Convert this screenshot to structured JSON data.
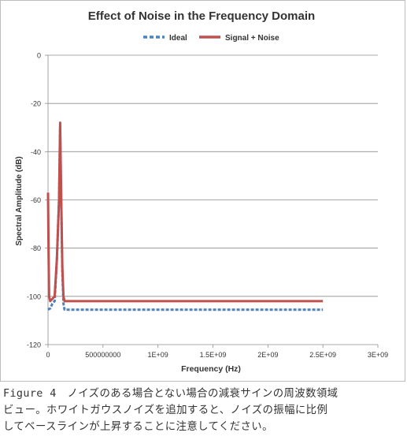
{
  "chart_data": {
    "type": "line",
    "title": "Effect of Noise in the Frequency Domain",
    "xlabel": "Frequency (Hz)",
    "ylabel": "Spectral Amplitude (dB)",
    "xlim": [
      0,
      3000000000
    ],
    "ylim": [
      -120,
      0
    ],
    "x_ticks": [
      0,
      500000000,
      1000000000,
      1500000000,
      2000000000,
      2500000000,
      3000000000
    ],
    "x_tick_labels": [
      "0",
      "500000000",
      "1E+09",
      "1.5E+09",
      "2E+09",
      "2.5E+09",
      "3E+09"
    ],
    "y_ticks": [
      0,
      -20,
      -40,
      -60,
      -80,
      -100,
      -120
    ],
    "y_tick_labels": [
      "0",
      "-20",
      "-40",
      "-60",
      "-80",
      "-100",
      "-120"
    ],
    "grid": "horizontal",
    "legend_position": "top-center",
    "series": [
      {
        "name": "Ideal",
        "color": "#4f81bd",
        "style": "dashed",
        "x": [
          0,
          20000000,
          40000000,
          60000000,
          80000000,
          100000000,
          110000000,
          120000000,
          130000000,
          140000000,
          150000000,
          200000000,
          300000000,
          500000000,
          1000000000,
          1500000000,
          2000000000,
          2500000000
        ],
        "y": [
          -105.5,
          -105,
          -103,
          -102,
          -85,
          -60,
          -30,
          -62,
          -90,
          -103,
          -105.5,
          -105.5,
          -105.5,
          -105.5,
          -105.5,
          -105.5,
          -105.5,
          -105.5
        ]
      },
      {
        "name": "Signal + Noise",
        "color": "#c0504d",
        "style": "solid",
        "x": [
          0,
          5000000,
          10000000,
          20000000,
          40000000,
          60000000,
          80000000,
          100000000,
          110000000,
          120000000,
          130000000,
          140000000,
          150000000,
          200000000,
          300000000,
          500000000,
          1000000000,
          1500000000,
          2000000000,
          2500000000
        ],
        "y": [
          -57,
          -82,
          -100,
          -102,
          -101,
          -100,
          -85,
          -60,
          -28,
          -60,
          -88,
          -100,
          -102,
          -102,
          -102,
          -102,
          -102,
          -102,
          -102,
          -102
        ]
      }
    ]
  },
  "caption_lines": [
    "Figure 4　ノイズのある場合とない場合の減衰サインの周波数領域",
    "ビュー。ホワイトガウスノイズを追加すると、ノイズの振幅に比例",
    "してベースラインが上昇することに注意してください。"
  ]
}
